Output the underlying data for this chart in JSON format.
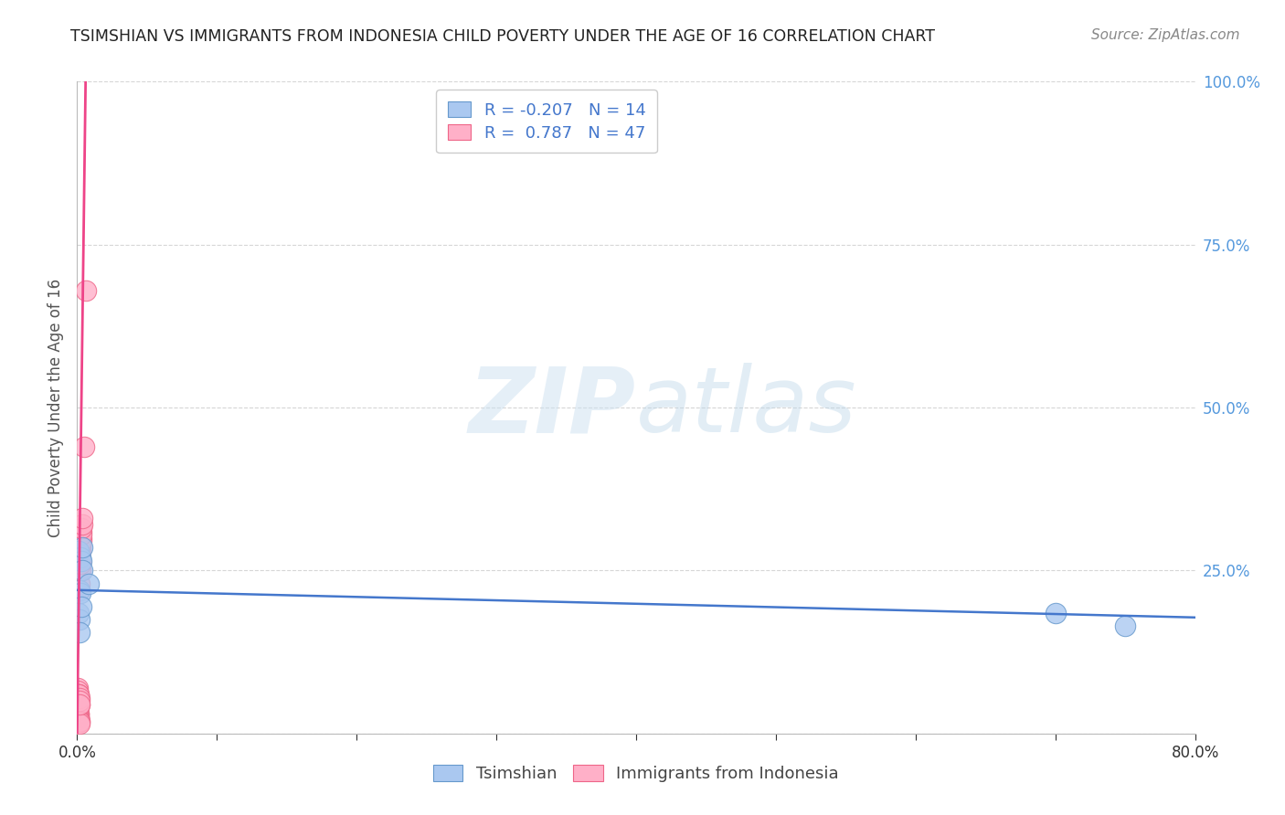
{
  "title": "TSIMSHIAN VS IMMIGRANTS FROM INDONESIA CHILD POVERTY UNDER THE AGE OF 16 CORRELATION CHART",
  "source": "Source: ZipAtlas.com",
  "ylabel": "Child Poverty Under the Age of 16",
  "xlim": [
    0.0,
    0.8
  ],
  "ylim": [
    0.0,
    1.0
  ],
  "xticks": [
    0.0,
    0.1,
    0.2,
    0.3,
    0.4,
    0.5,
    0.6,
    0.7,
    0.8
  ],
  "xticklabels": [
    "0.0%",
    "",
    "",
    "",
    "",
    "",
    "",
    "",
    "80.0%"
  ],
  "yticks": [
    0.0,
    0.25,
    0.5,
    0.75,
    1.0
  ],
  "yticklabels": [
    "",
    "25.0%",
    "50.0%",
    "75.0%",
    "100.0%"
  ],
  "tsimshian_x": [
    0.0008,
    0.0012,
    0.0015,
    0.0018,
    0.002,
    0.0022,
    0.0025,
    0.0028,
    0.003,
    0.0035,
    0.004,
    0.008,
    0.7,
    0.75
  ],
  "tsimshian_y": [
    0.185,
    0.28,
    0.22,
    0.175,
    0.155,
    0.215,
    0.27,
    0.195,
    0.265,
    0.285,
    0.25,
    0.23,
    0.185,
    0.165
  ],
  "indonesia_x": [
    0.0003,
    0.0003,
    0.0004,
    0.0004,
    0.0005,
    0.0005,
    0.0006,
    0.0006,
    0.0007,
    0.0007,
    0.0008,
    0.0008,
    0.0009,
    0.001,
    0.001,
    0.0011,
    0.0011,
    0.0012,
    0.0012,
    0.0013,
    0.0013,
    0.0014,
    0.0015,
    0.0015,
    0.0016,
    0.0017,
    0.0018,
    0.0018,
    0.002,
    0.002,
    0.002,
    0.0022,
    0.0022,
    0.0023,
    0.0023,
    0.0025,
    0.0025,
    0.0027,
    0.0028,
    0.003,
    0.003,
    0.0032,
    0.0032,
    0.0035,
    0.004,
    0.005,
    0.006
  ],
  "indonesia_y": [
    0.04,
    0.055,
    0.038,
    0.06,
    0.035,
    0.07,
    0.032,
    0.065,
    0.03,
    0.06,
    0.028,
    0.055,
    0.03,
    0.03,
    0.05,
    0.025,
    0.06,
    0.025,
    0.05,
    0.022,
    0.06,
    0.045,
    0.02,
    0.055,
    0.018,
    0.05,
    0.015,
    0.045,
    0.22,
    0.23,
    0.25,
    0.25,
    0.265,
    0.26,
    0.28,
    0.285,
    0.295,
    0.29,
    0.3,
    0.295,
    0.31,
    0.305,
    0.315,
    0.32,
    0.33,
    0.44,
    0.68
  ],
  "tsimshian_color": "#aac8f0",
  "tsimshian_edge": "#6699cc",
  "indonesia_color": "#ffb0c8",
  "indonesia_edge": "#ee6688",
  "line_tsimshian_color": "#4477cc",
  "line_indonesia_color": "#ee4488",
  "tsim_line_x0": 0.0,
  "tsim_line_y0": 0.22,
  "tsim_line_x1": 0.8,
  "tsim_line_y1": 0.178,
  "indo_line_x0": 0.0,
  "indo_line_y0": 0.0,
  "indo_line_x1": 0.0062,
  "indo_line_y1": 1.02,
  "R_tsimshian": -0.207,
  "N_tsimshian": 14,
  "R_indonesia": 0.787,
  "N_indonesia": 47,
  "watermark_zip": "ZIP",
  "watermark_atlas": "atlas",
  "background_color": "#ffffff",
  "grid_color": "#cccccc",
  "title_fontsize": 12.5,
  "source_fontsize": 11,
  "tick_fontsize": 12,
  "ylabel_fontsize": 12,
  "legend_fontsize": 13
}
